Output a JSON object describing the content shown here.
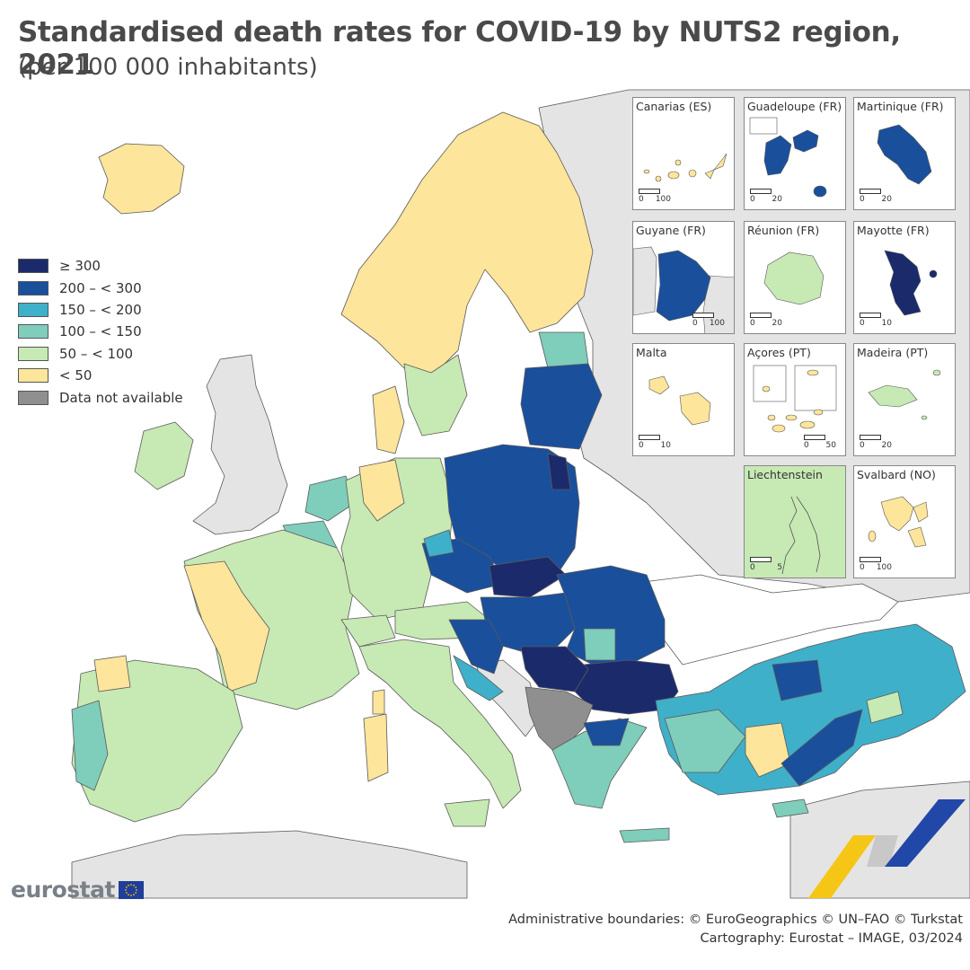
{
  "title": "Standardised death rates for COVID-19 by NUTS2 region, 2021",
  "subtitle": "(per 100 000 inhabitants)",
  "legend": {
    "items": [
      {
        "label": "≥ 300",
        "color": "#1b2a6b"
      },
      {
        "label": "200 – < 300",
        "color": "#1a4f9c"
      },
      {
        "label": "150 – < 200",
        "color": "#3fb0c9"
      },
      {
        "label": "100 – < 150",
        "color": "#7fcdbb"
      },
      {
        "label": "50 – < 100",
        "color": "#c7e9b4"
      },
      {
        "label": "< 50",
        "color": "#fde59b"
      },
      {
        "label": "Data not available",
        "color": "#8f8f8f"
      }
    ]
  },
  "map_colors": {
    "sea": "#ffffff",
    "non_eu_land": "#e4e4e4",
    "border": "#5a5a5a"
  },
  "insets": [
    {
      "name": "Canarias (ES)",
      "scale_left": "0",
      "scale_right": "100",
      "fill": "#fde59b"
    },
    {
      "name": "Guadeloupe (FR)",
      "scale_left": "0",
      "scale_right": "20",
      "fill": "#1a4f9c"
    },
    {
      "name": "Martinique (FR)",
      "scale_left": "0",
      "scale_right": "20",
      "fill": "#1a4f9c"
    },
    {
      "name": "Guyane (FR)",
      "scale_left": "0",
      "scale_right": "100",
      "fill": "#1a4f9c"
    },
    {
      "name": "Réunion (FR)",
      "scale_left": "0",
      "scale_right": "20",
      "fill": "#c7e9b4"
    },
    {
      "name": "Mayotte (FR)",
      "scale_left": "0",
      "scale_right": "10",
      "fill": "#1b2a6b"
    },
    {
      "name": "Malta",
      "scale_left": "0",
      "scale_right": "10",
      "fill": "#fde59b"
    },
    {
      "name": "Açores (PT)",
      "scale_left": "0",
      "scale_right": "50",
      "fill": "#fde59b"
    },
    {
      "name": "Madeira (PT)",
      "scale_left": "0",
      "scale_right": "20",
      "fill": "#c7e9b4"
    },
    {
      "name": "Liechtenstein",
      "scale_left": "0",
      "scale_right": "5",
      "fill": "#c7e9b4"
    },
    {
      "name": "Svalbard (NO)",
      "scale_left": "0",
      "scale_right": "100",
      "fill": "#fde59b"
    }
  ],
  "logo": {
    "text": "eurostat",
    "flag_color": "#1f3f9a",
    "star_color": "#f2c200"
  },
  "credits": {
    "line1": "Administrative boundaries: © EuroGeographics © UN–FAO © Turkstat",
    "line2": "Cartography: Eurostat – IMAGE, 03/2024"
  }
}
